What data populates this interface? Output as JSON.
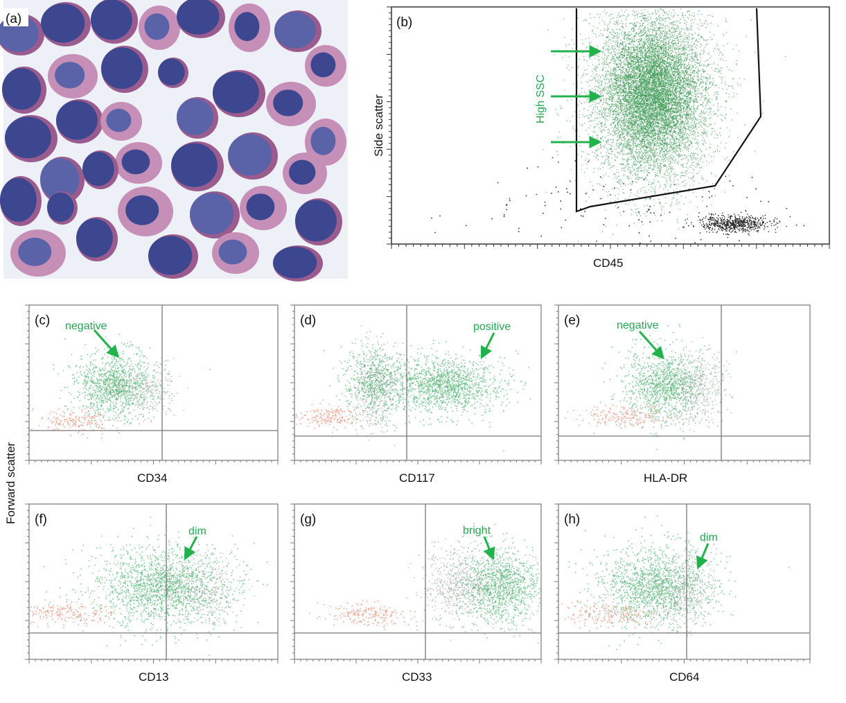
{
  "panel_a": {
    "label": "(a)",
    "cell_colors": {
      "nucleus": "#3c478f",
      "nucleus_light": "#5a63a8",
      "cytoplasm": "#9a5c8e",
      "cytoplasm_light": "#c68fb7",
      "background": "#eef0f8"
    }
  },
  "panel_b": {
    "label": "(b)",
    "xlabel": "CD45",
    "ylabel": "Side scatter",
    "annotation": "High SSC",
    "colors": {
      "gated": "#1f8a3a",
      "other": "#000000",
      "arrow": "#22b24c"
    }
  },
  "shared_ylabel": "Forward scatter",
  "annotation_color": "#22a850",
  "panels": [
    {
      "id": "c",
      "label": "(c)",
      "xlabel": "CD34",
      "annotation": "negative"
    },
    {
      "id": "d",
      "label": "(d)",
      "xlabel": "CD117",
      "annotation": "positive"
    },
    {
      "id": "e",
      "label": "(e)",
      "xlabel": "HLA-DR",
      "annotation": "negative"
    },
    {
      "id": "f",
      "label": "(f)",
      "xlabel": "CD13",
      "annotation": "dim"
    },
    {
      "id": "g",
      "label": "(g)",
      "xlabel": "CD33",
      "annotation": "bright"
    },
    {
      "id": "h",
      "label": "(h)",
      "xlabel": "CD64",
      "annotation": "dim"
    }
  ],
  "dot_colors": {
    "blast": "#2fae5a",
    "blast_dark": "#1c8a3e",
    "gray": "#9c9c9c",
    "lymph": "#e8704f",
    "yellow": "#d9c04a"
  }
}
